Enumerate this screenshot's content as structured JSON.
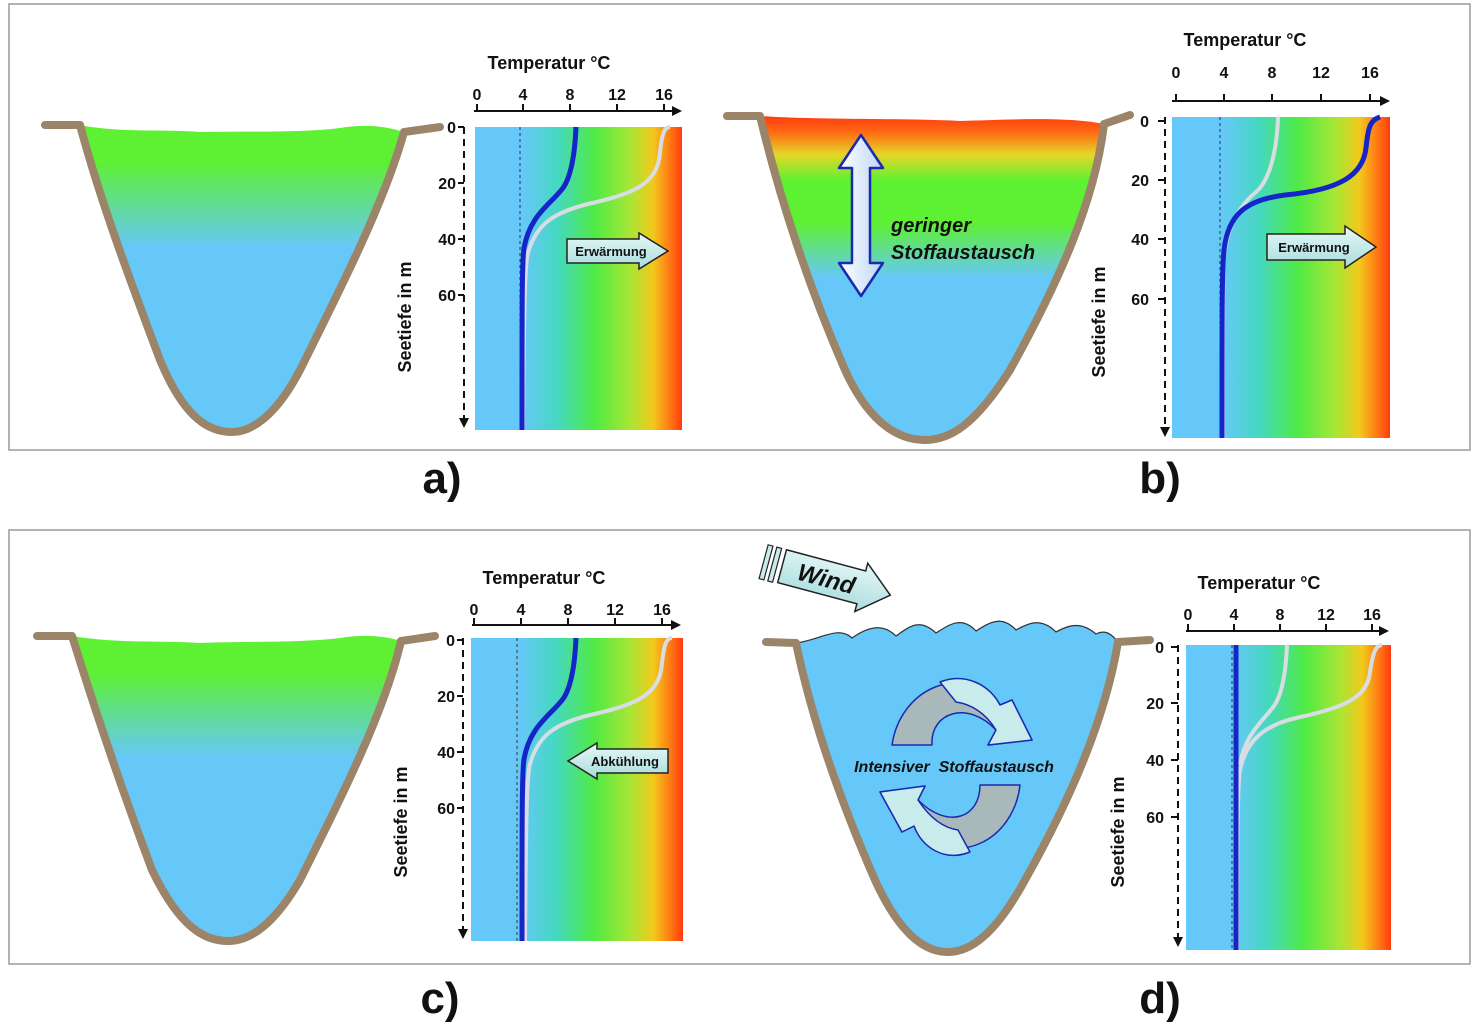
{
  "panels": [
    {
      "label": "a)",
      "lake_state": "stratified-weak",
      "temp_axis_title": "Temperatur °C",
      "temp_ticks": [
        "0",
        "4",
        "8",
        "12",
        "16"
      ],
      "depth_axis_title": "Seetiefe in m",
      "depth_ticks": [
        "0",
        "20",
        "40",
        "60"
      ],
      "arrow_label": "Erwärmung",
      "arrow_direction": "right"
    },
    {
      "label": "b)",
      "lake_state": "stratified-strong",
      "temp_axis_title": "Temperatur °C",
      "temp_ticks": [
        "0",
        "4",
        "8",
        "12",
        "16"
      ],
      "depth_axis_title": "Seetiefe in m",
      "depth_ticks": [
        "0",
        "20",
        "40",
        "60"
      ],
      "arrow_label": "Erwärmung",
      "arrow_direction": "right",
      "lake_text_line1": "geringer",
      "lake_text_line2": "Stoffaustausch"
    },
    {
      "label": "c)",
      "lake_state": "stratified-weak",
      "temp_axis_title": "Temperatur °C",
      "temp_ticks": [
        "0",
        "4",
        "8",
        "12",
        "16"
      ],
      "depth_axis_title": "Seetiefe in m",
      "depth_ticks": [
        "0",
        "20",
        "40",
        "60"
      ],
      "arrow_label": "Abkühlung",
      "arrow_direction": "left"
    },
    {
      "label": "d)",
      "lake_state": "mixed",
      "temp_axis_title": "Temperatur °C",
      "temp_ticks": [
        "0",
        "4",
        "8",
        "12",
        "16"
      ],
      "depth_axis_title": "Seetiefe in m",
      "depth_ticks": [
        "0",
        "20",
        "40",
        "60"
      ],
      "wind_label": "Wind",
      "lake_text": "Intensiver  Stoffaustausch"
    }
  ],
  "colors": {
    "cold_water": "#66c8f8",
    "warm_surface_green": "#5ef032",
    "hot_red": "#ff3a10",
    "lake_bed": "#9b8467",
    "profile_current": "#1526c8",
    "profile_previous": "#d8dde4",
    "arrow_fill": "#c8ecec"
  }
}
